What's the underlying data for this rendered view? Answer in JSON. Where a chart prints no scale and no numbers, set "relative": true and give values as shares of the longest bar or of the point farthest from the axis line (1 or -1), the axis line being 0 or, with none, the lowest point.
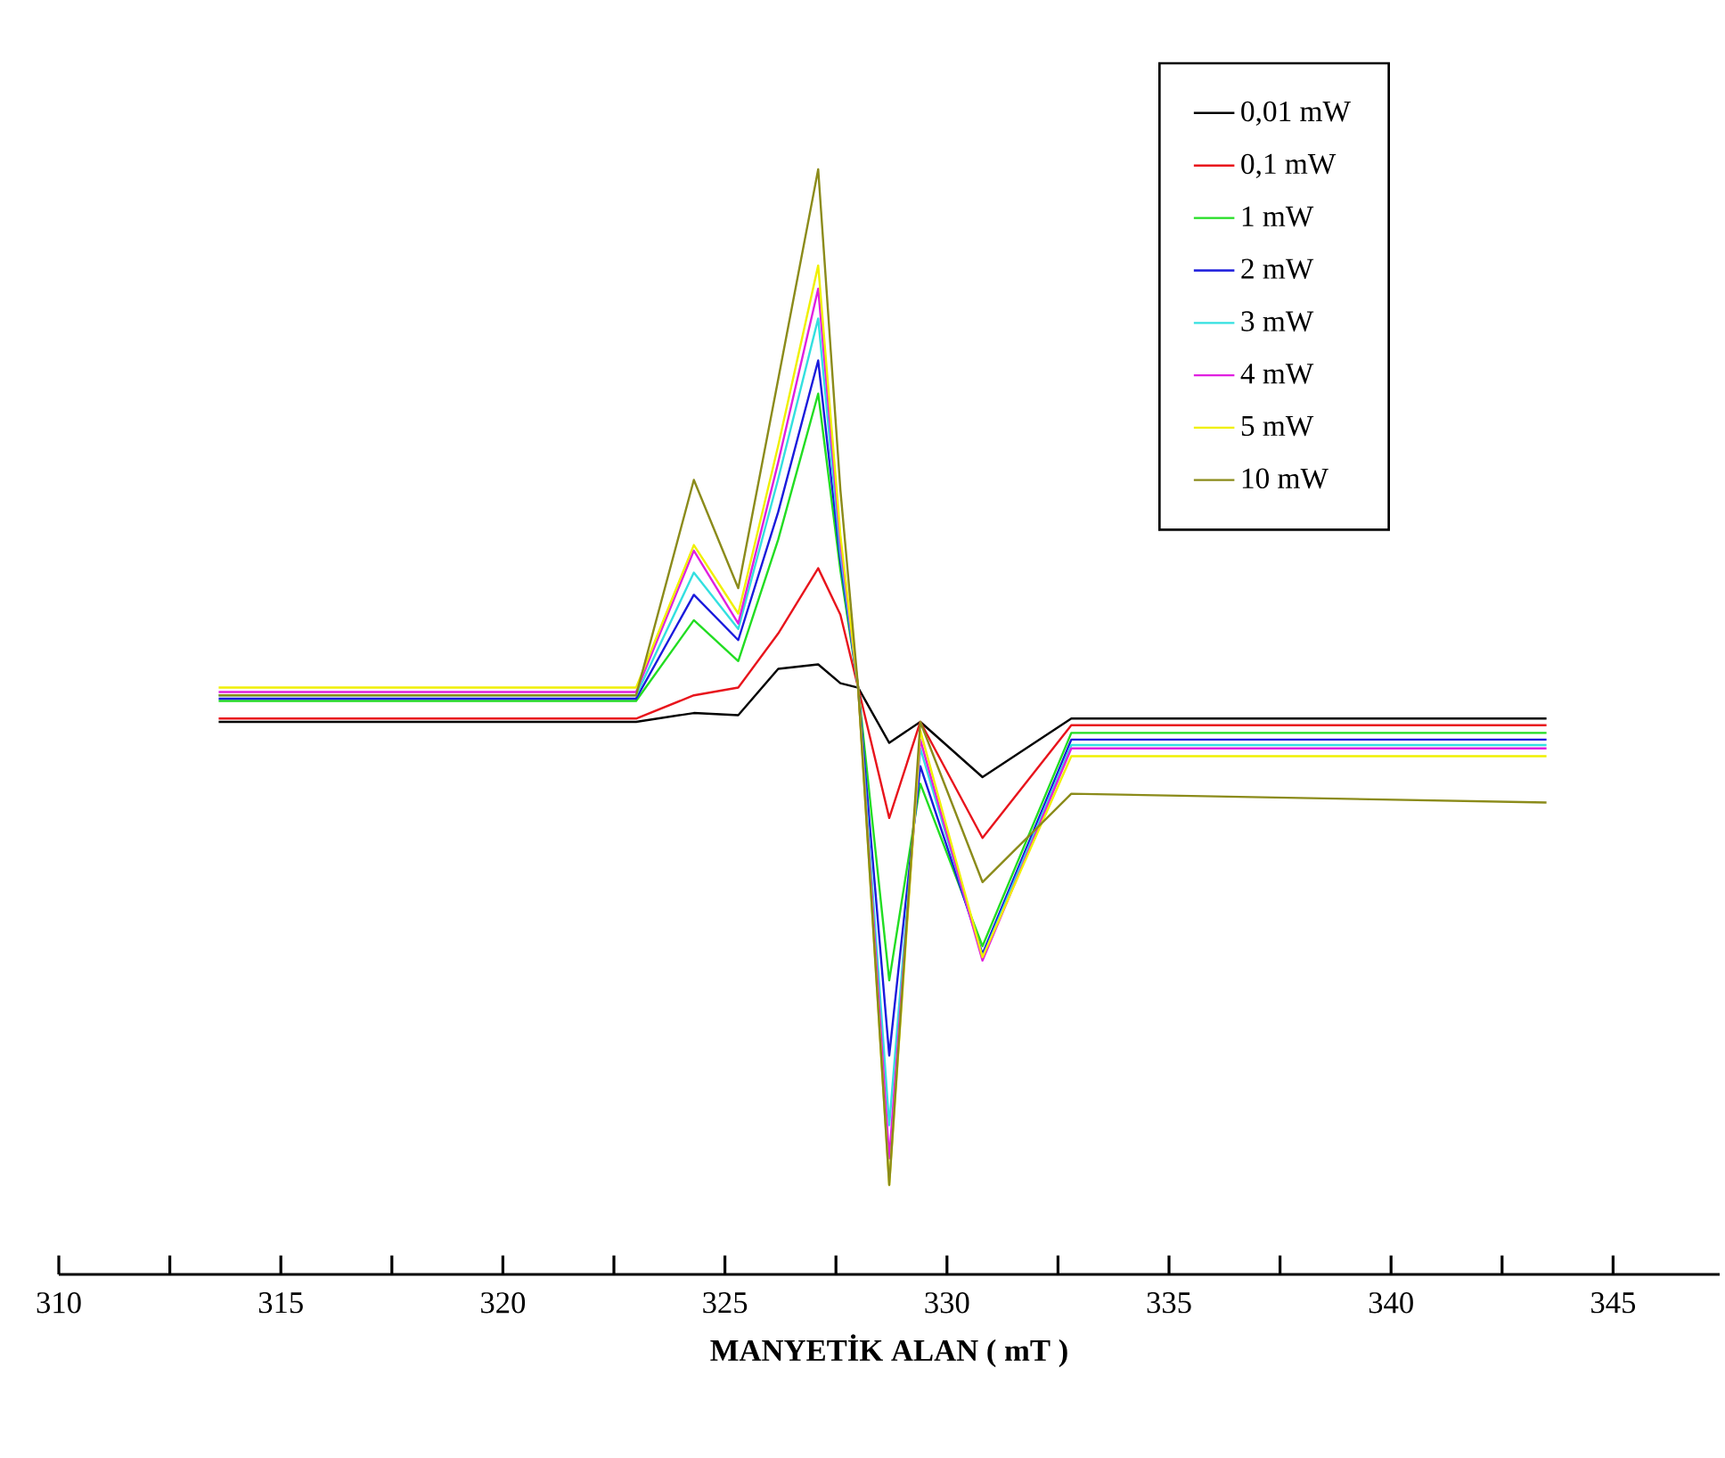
{
  "chart_data": {
    "type": "line",
    "relative": true,
    "xlabel": "MANYETİK ALAN ( mT )",
    "x": [
      313.6,
      323.0,
      324.3,
      325.3,
      326.2,
      327.1,
      327.6,
      328.0,
      328.7,
      329.4,
      330.8,
      332.8,
      343.5
    ],
    "xlim": [
      310,
      347.4
    ],
    "xticks": [
      310,
      {
        "value": 312.5,
        "label": null
      },
      315,
      {
        "value": 317.5,
        "label": null
      },
      320,
      {
        "value": 322.5,
        "label": null
      },
      325,
      {
        "value": 327.5,
        "label": null
      },
      330,
      {
        "value": 332.5,
        "label": null
      },
      335,
      {
        "value": 337.5,
        "label": null
      },
      340,
      {
        "value": 342.5,
        "label": null
      },
      345
    ],
    "legend": "top right",
    "series": [
      {
        "name": "0,01 mW",
        "color": "#000000",
        "values": [
          0.5,
          0.5,
          0.508,
          0.506,
          0.548,
          0.552,
          0.535,
          0.531,
          0.481,
          0.5,
          0.45,
          0.503,
          0.503
        ]
      },
      {
        "name": "0,1 mW",
        "color": "#e8141c",
        "values": [
          0.503,
          0.503,
          0.524,
          0.531,
          0.58,
          0.639,
          0.597,
          0.531,
          0.413,
          0.5,
          0.395,
          0.497,
          0.497
        ]
      },
      {
        "name": "1 mW",
        "color": "#22dd22",
        "values": [
          0.519,
          0.519,
          0.592,
          0.555,
          0.665,
          0.797,
          0.637,
          0.531,
          0.266,
          0.444,
          0.297,
          0.49,
          0.49
        ]
      },
      {
        "name": "2 mW",
        "color": "#1a1adc",
        "values": [
          0.521,
          0.521,
          0.615,
          0.574,
          0.69,
          0.827,
          0.645,
          0.531,
          0.198,
          0.46,
          0.29,
          0.484,
          0.484
        ]
      },
      {
        "name": "3 mW",
        "color": "#33e0e0",
        "values": [
          0.524,
          0.524,
          0.635,
          0.584,
          0.72,
          0.865,
          0.653,
          0.531,
          0.135,
          0.476,
          0.287,
          0.479,
          0.479
        ]
      },
      {
        "name": "4 mW",
        "color": "#e020e0",
        "values": [
          0.527,
          0.527,
          0.655,
          0.589,
          0.735,
          0.892,
          0.661,
          0.531,
          0.105,
          0.484,
          0.284,
          0.476,
          0.476
        ]
      },
      {
        "name": "5 mW",
        "color": "#f0f000",
        "values": [
          0.531,
          0.531,
          0.66,
          0.598,
          0.75,
          0.913,
          0.669,
          0.531,
          0.081,
          0.492,
          0.287,
          0.469,
          0.469
        ]
      },
      {
        "name": "10 mW",
        "color": "#8b8b1a",
        "values": [
          0.524,
          0.524,
          0.719,
          0.621,
          0.81,
          1,
          0.71,
          0.531,
          0.081,
          0.5,
          0.355,
          0.435,
          0.427
        ]
      }
    ]
  }
}
